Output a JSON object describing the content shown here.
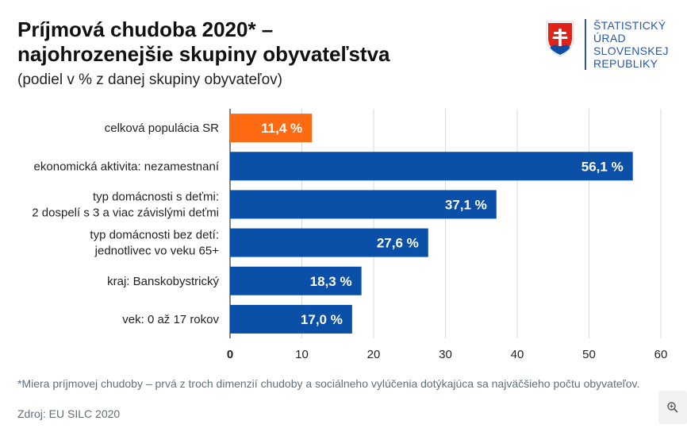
{
  "header": {
    "title_line1": "Príjmová chudoba 2020* –",
    "title_line2": "najohrozenejšie skupiny obyvateľstva",
    "subtitle": "(podiel v % z danej skupiny obyvateľov)"
  },
  "logo": {
    "line1": "ŠTATISTICKÝ",
    "line2": "ÚRAD",
    "line3": "SLOVENSKEJ",
    "line4": "REPUBLIKY",
    "color": "#2a57a8"
  },
  "chart_data": {
    "type": "bar",
    "orientation": "horizontal",
    "title": "Príjmová chudoba 2020* – najohrozenejšie skupiny obyvateľstva",
    "subtitle": "(podiel v % z danej skupiny obyvateľov)",
    "categories": [
      [
        "celková populácia SR"
      ],
      [
        "ekonomická aktivita: nezamestnaní"
      ],
      [
        "typ domácnosti s deťmi:",
        "2 dospelí s 3 a viac závislými deťmi"
      ],
      [
        "typ domácnosti bez detí:",
        "jednotlivec vo veku 65+"
      ],
      [
        "kraj: Banskobystrický"
      ],
      [
        "vek: 0 až 17 rokov"
      ]
    ],
    "values": [
      11.4,
      56.1,
      37.1,
      27.6,
      18.3,
      17.0
    ],
    "value_labels": [
      "11,4 %",
      "56,1 %",
      "37,1 %",
      "27,6 %",
      "18,3 %",
      "17,0 %"
    ],
    "colors": [
      "#ff6a13",
      "#0a4fa8",
      "#0a4fa8",
      "#0a4fa8",
      "#0a4fa8",
      "#0a4fa8"
    ],
    "xlim": [
      0,
      60
    ],
    "xticks": [
      0,
      10,
      20,
      30,
      40,
      50,
      60
    ],
    "xlabel": "",
    "ylabel": "",
    "grid": true,
    "legend": "none"
  },
  "footer": {
    "footnote": "*Miera príjmovej chudoby – prvá z troch dimenzií chudoby a sociálneho vylúčenia dotýkajúca sa najväčšieho počtu obyvateľov.",
    "source": "Zdroj: EU SILC 2020"
  },
  "zoom": {
    "icon": "zoom-in-icon"
  }
}
